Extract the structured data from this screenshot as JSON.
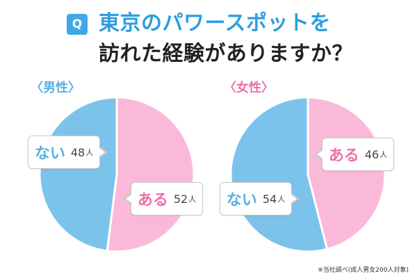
{
  "title": {
    "badge": "Q",
    "line1": "東京のパワースポットを",
    "line2": "訪れた経験がありますか？"
  },
  "colors": {
    "blue": "#7cc3ec",
    "pink": "#fbb9d9",
    "male_label": "#5aaee3",
    "female_label": "#ef6fa9",
    "title_blue": "#2c9ee0",
    "badge": "#3fa9e8"
  },
  "chart_data": [
    {
      "type": "pie",
      "title": "〈男性〉",
      "slices": [
        {
          "label": "ある",
          "value": 52,
          "unit": "人",
          "color": "#fbb9d9"
        },
        {
          "label": "ない",
          "value": 48,
          "unit": "人",
          "color": "#7cc3ec"
        }
      ]
    },
    {
      "type": "pie",
      "title": "〈女性〉",
      "slices": [
        {
          "label": "ある",
          "value": 46,
          "unit": "人",
          "color": "#fbb9d9"
        },
        {
          "label": "ない",
          "value": 54,
          "unit": "人",
          "color": "#7cc3ec"
        }
      ]
    }
  ],
  "footnote": "※当社調べ(成人男女200人対象)"
}
